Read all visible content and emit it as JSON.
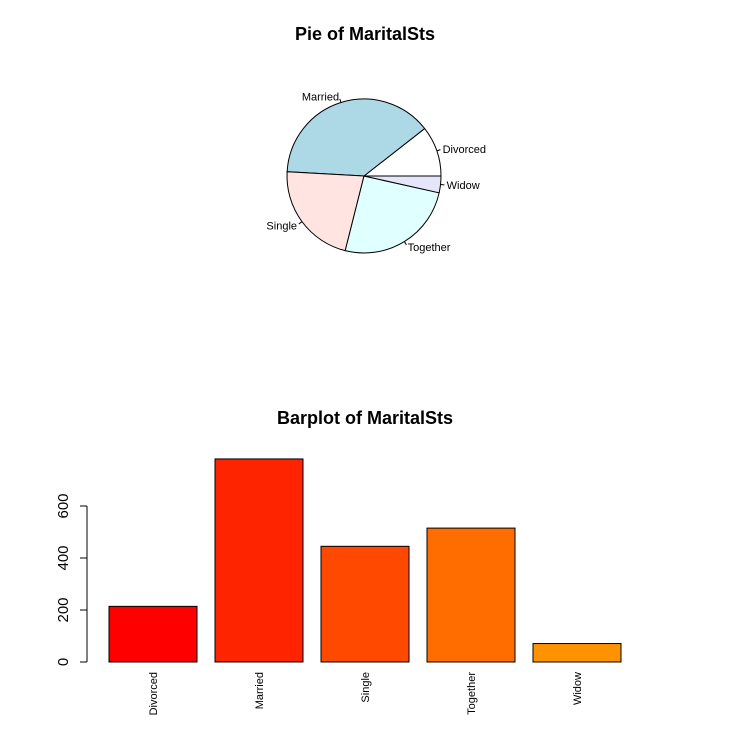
{
  "chart_data": [
    {
      "type": "pie",
      "title": "Pie of MaritalSts",
      "categories": [
        "Divorced",
        "Married",
        "Single",
        "Together",
        "Widow"
      ],
      "values": [
        214,
        781,
        445,
        515,
        71
      ],
      "colors": [
        "#ffffff",
        "#add8e6",
        "#ffe4e1",
        "#e0ffff",
        "#e6e6fa"
      ],
      "start": "3 o'clock, counter-clockwise"
    },
    {
      "type": "bar",
      "title": "Barplot of MaritalSts",
      "categories": [
        "Divorced",
        "Married",
        "Single",
        "Together",
        "Widow"
      ],
      "values": [
        214,
        781,
        445,
        515,
        71
      ],
      "colors": [
        "#ff0000",
        "#ff2400",
        "#ff4900",
        "#ff6d00",
        "#ff9200"
      ],
      "yticks": [
        "0",
        "200",
        "400",
        "600"
      ],
      "ylim": [
        0,
        800
      ],
      "xlabel": "",
      "ylabel": "",
      "grid": false
    }
  ]
}
